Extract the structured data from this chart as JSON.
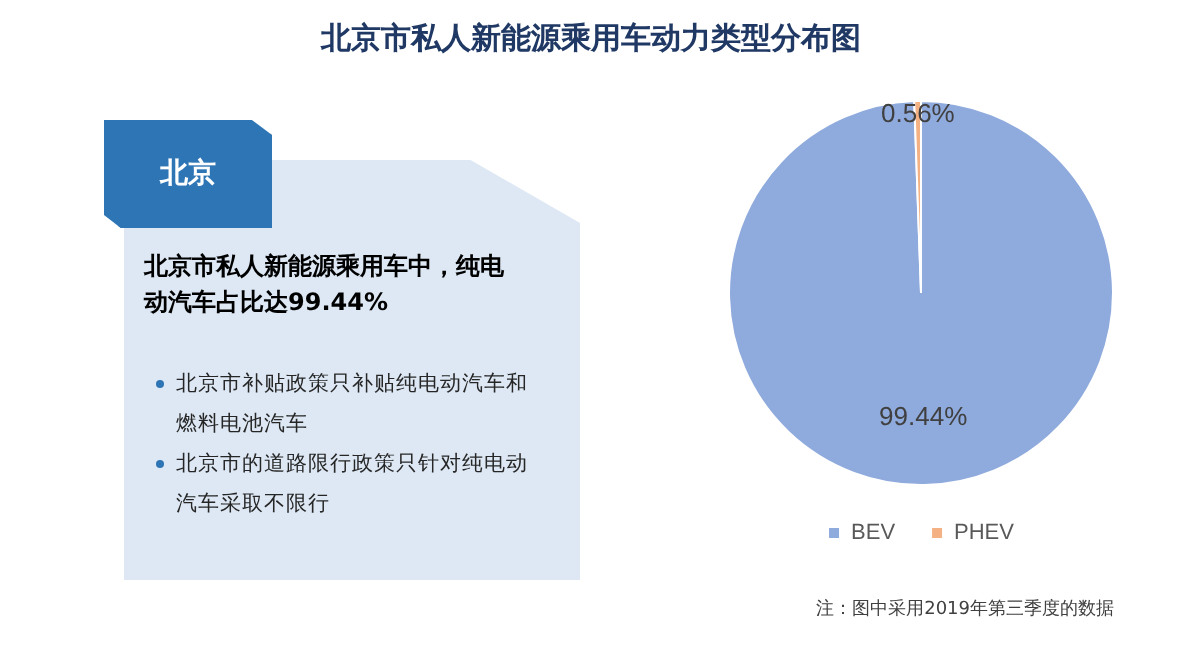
{
  "chart_data": [
    {
      "type": "other",
      "title": "北京",
      "annotations": [
        "北京市私人新能源乘用车中，纯电动汽车占比达99.44%",
        "北京市补贴政策只补贴纯电动汽车和燃料电池汽车",
        "北京市的道路限行政策只针对纯电动汽车采取不限行"
      ]
    },
    {
      "type": "pie",
      "title": "北京市私人新能源乘用车动力类型分布图",
      "categories": [
        "BEV",
        "PHEV"
      ],
      "values": [
        99.44,
        0.56
      ],
      "colors": [
        "#8faadc",
        "#f4b183"
      ],
      "value_labels": [
        "99.44%",
        "0.56%"
      ],
      "legend": "bottom",
      "annotations": [
        "注：图中采用2019年第三季度的数据"
      ]
    }
  ]
}
